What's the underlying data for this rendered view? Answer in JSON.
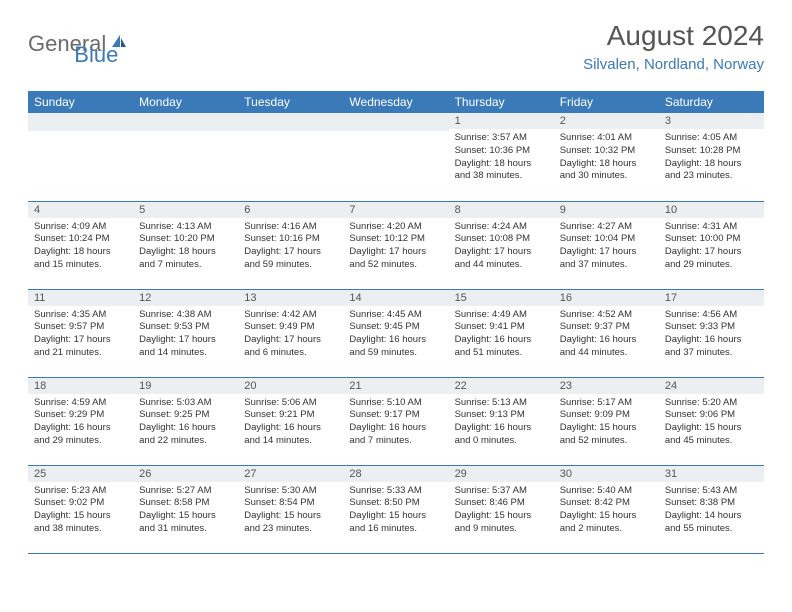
{
  "logo": {
    "gray": "General",
    "blue": "Blue"
  },
  "title": "August 2024",
  "location": "Silvalen, Nordland, Norway",
  "colors": {
    "header_bg": "#3a7ab8",
    "header_text": "#ffffff",
    "num_row_bg": "#eceff1",
    "border": "#3a7ab8",
    "logo_gray": "#6b6b6b",
    "logo_blue": "#3a7ab8"
  },
  "weekdays": [
    "Sunday",
    "Monday",
    "Tuesday",
    "Wednesday",
    "Thursday",
    "Friday",
    "Saturday"
  ],
  "first_weekday_index": 4,
  "days": [
    {
      "n": 1,
      "sr": "3:57 AM",
      "ss": "10:36 PM",
      "dl": "18 hours and 38 minutes."
    },
    {
      "n": 2,
      "sr": "4:01 AM",
      "ss": "10:32 PM",
      "dl": "18 hours and 30 minutes."
    },
    {
      "n": 3,
      "sr": "4:05 AM",
      "ss": "10:28 PM",
      "dl": "18 hours and 23 minutes."
    },
    {
      "n": 4,
      "sr": "4:09 AM",
      "ss": "10:24 PM",
      "dl": "18 hours and 15 minutes."
    },
    {
      "n": 5,
      "sr": "4:13 AM",
      "ss": "10:20 PM",
      "dl": "18 hours and 7 minutes."
    },
    {
      "n": 6,
      "sr": "4:16 AM",
      "ss": "10:16 PM",
      "dl": "17 hours and 59 minutes."
    },
    {
      "n": 7,
      "sr": "4:20 AM",
      "ss": "10:12 PM",
      "dl": "17 hours and 52 minutes."
    },
    {
      "n": 8,
      "sr": "4:24 AM",
      "ss": "10:08 PM",
      "dl": "17 hours and 44 minutes."
    },
    {
      "n": 9,
      "sr": "4:27 AM",
      "ss": "10:04 PM",
      "dl": "17 hours and 37 minutes."
    },
    {
      "n": 10,
      "sr": "4:31 AM",
      "ss": "10:00 PM",
      "dl": "17 hours and 29 minutes."
    },
    {
      "n": 11,
      "sr": "4:35 AM",
      "ss": "9:57 PM",
      "dl": "17 hours and 21 minutes."
    },
    {
      "n": 12,
      "sr": "4:38 AM",
      "ss": "9:53 PM",
      "dl": "17 hours and 14 minutes."
    },
    {
      "n": 13,
      "sr": "4:42 AM",
      "ss": "9:49 PM",
      "dl": "17 hours and 6 minutes."
    },
    {
      "n": 14,
      "sr": "4:45 AM",
      "ss": "9:45 PM",
      "dl": "16 hours and 59 minutes."
    },
    {
      "n": 15,
      "sr": "4:49 AM",
      "ss": "9:41 PM",
      "dl": "16 hours and 51 minutes."
    },
    {
      "n": 16,
      "sr": "4:52 AM",
      "ss": "9:37 PM",
      "dl": "16 hours and 44 minutes."
    },
    {
      "n": 17,
      "sr": "4:56 AM",
      "ss": "9:33 PM",
      "dl": "16 hours and 37 minutes."
    },
    {
      "n": 18,
      "sr": "4:59 AM",
      "ss": "9:29 PM",
      "dl": "16 hours and 29 minutes."
    },
    {
      "n": 19,
      "sr": "5:03 AM",
      "ss": "9:25 PM",
      "dl": "16 hours and 22 minutes."
    },
    {
      "n": 20,
      "sr": "5:06 AM",
      "ss": "9:21 PM",
      "dl": "16 hours and 14 minutes."
    },
    {
      "n": 21,
      "sr": "5:10 AM",
      "ss": "9:17 PM",
      "dl": "16 hours and 7 minutes."
    },
    {
      "n": 22,
      "sr": "5:13 AM",
      "ss": "9:13 PM",
      "dl": "16 hours and 0 minutes."
    },
    {
      "n": 23,
      "sr": "5:17 AM",
      "ss": "9:09 PM",
      "dl": "15 hours and 52 minutes."
    },
    {
      "n": 24,
      "sr": "5:20 AM",
      "ss": "9:06 PM",
      "dl": "15 hours and 45 minutes."
    },
    {
      "n": 25,
      "sr": "5:23 AM",
      "ss": "9:02 PM",
      "dl": "15 hours and 38 minutes."
    },
    {
      "n": 26,
      "sr": "5:27 AM",
      "ss": "8:58 PM",
      "dl": "15 hours and 31 minutes."
    },
    {
      "n": 27,
      "sr": "5:30 AM",
      "ss": "8:54 PM",
      "dl": "15 hours and 23 minutes."
    },
    {
      "n": 28,
      "sr": "5:33 AM",
      "ss": "8:50 PM",
      "dl": "15 hours and 16 minutes."
    },
    {
      "n": 29,
      "sr": "5:37 AM",
      "ss": "8:46 PM",
      "dl": "15 hours and 9 minutes."
    },
    {
      "n": 30,
      "sr": "5:40 AM",
      "ss": "8:42 PM",
      "dl": "15 hours and 2 minutes."
    },
    {
      "n": 31,
      "sr": "5:43 AM",
      "ss": "8:38 PM",
      "dl": "14 hours and 55 minutes."
    }
  ],
  "labels": {
    "sunrise": "Sunrise:",
    "sunset": "Sunset:",
    "daylight": "Daylight:"
  }
}
